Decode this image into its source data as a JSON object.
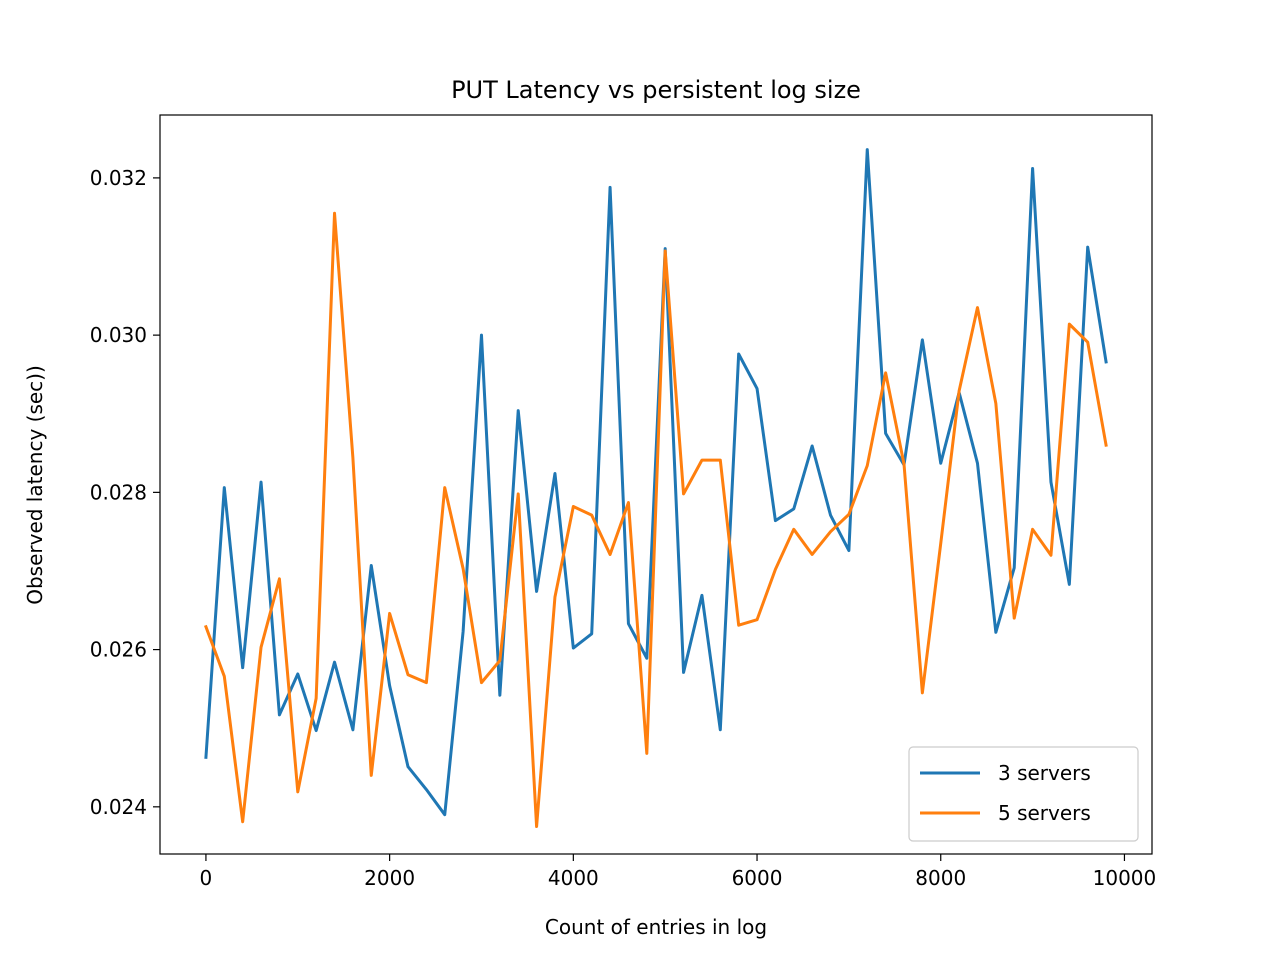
{
  "chart_data": {
    "type": "line",
    "title": "PUT Latency vs persistent log size",
    "xlabel": "Count of entries in log",
    "ylabel": "Observed latency (sec))",
    "xlim": [
      -500,
      10300
    ],
    "ylim": [
      0.0234,
      0.0328
    ],
    "xticks": [
      0,
      2000,
      4000,
      6000,
      8000,
      10000
    ],
    "yticks": [
      0.024,
      0.026,
      0.028,
      0.03,
      0.032
    ],
    "xtick_labels": [
      "0",
      "2000",
      "4000",
      "6000",
      "8000",
      "10000"
    ],
    "ytick_labels": [
      "0.024",
      "0.026",
      "0.028",
      "0.030",
      "0.032"
    ],
    "grid": false,
    "legend_position": "lower-right",
    "x": [
      0,
      200,
      400,
      600,
      800,
      1000,
      1200,
      1400,
      1600,
      1800,
      2000,
      2200,
      2400,
      2600,
      2800,
      3000,
      3200,
      3400,
      3600,
      3800,
      4000,
      4200,
      4400,
      4600,
      4800,
      5000,
      5200,
      5400,
      5600,
      5800,
      6000,
      6200,
      6400,
      6600,
      6800,
      7000,
      7200,
      7400,
      7600,
      7800,
      8000,
      8200,
      8400,
      8600,
      8800,
      9000,
      9200,
      9400,
      9600,
      9800
    ],
    "series": [
      {
        "name": "3 servers",
        "color": "#1f77b4",
        "values": [
          0.02463,
          0.02806,
          0.02577,
          0.02813,
          0.02517,
          0.02569,
          0.02497,
          0.02584,
          0.02498,
          0.02707,
          0.02554,
          0.02451,
          0.02422,
          0.0239,
          0.02623,
          0.03,
          0.02542,
          0.02904,
          0.02674,
          0.02824,
          0.02602,
          0.0262,
          0.03188,
          0.02633,
          0.02589,
          0.0311,
          0.02571,
          0.02669,
          0.02498,
          0.02976,
          0.02932,
          0.02764,
          0.02779,
          0.02859,
          0.02771,
          0.02726,
          0.03236,
          0.02875,
          0.02835,
          0.02994,
          0.02837,
          0.02927,
          0.02837,
          0.02622,
          0.02704,
          0.03212,
          0.02813,
          0.02683,
          0.03112,
          0.02966
        ]
      },
      {
        "name": "5 servers",
        "color": "#ff7f0e",
        "values": [
          0.02629,
          0.02566,
          0.02381,
          0.02603,
          0.0269,
          0.02419,
          0.02538,
          0.03155,
          0.02844,
          0.0244,
          0.02646,
          0.02568,
          0.02558,
          0.02806,
          0.02703,
          0.02558,
          0.02586,
          0.02798,
          0.02375,
          0.02667,
          0.02782,
          0.02771,
          0.02721,
          0.02787,
          0.02468,
          0.03107,
          0.02798,
          0.02841,
          0.02841,
          0.02631,
          0.02638,
          0.02702,
          0.02753,
          0.02721,
          0.0275,
          0.02772,
          0.02834,
          0.02952,
          0.02836,
          0.02545,
          0.02735,
          0.02929,
          0.03035,
          0.02913,
          0.0264,
          0.02753,
          0.0272,
          0.03014,
          0.02991,
          0.0286
        ]
      }
    ]
  }
}
